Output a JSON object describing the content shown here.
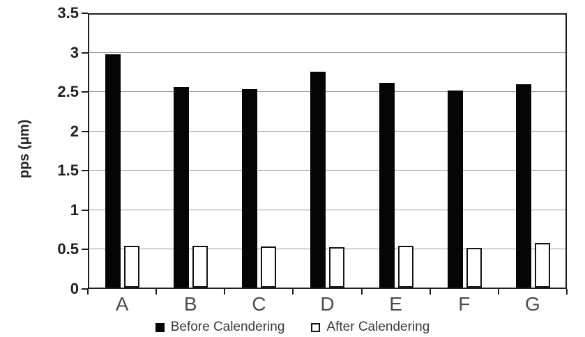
{
  "chart_data": {
    "type": "bar",
    "title": "",
    "categories": [
      "A",
      "B",
      "C",
      "D",
      "E",
      "F",
      "G"
    ],
    "series": [
      {
        "name": "Before Calendering",
        "values": [
          2.96,
          2.55,
          2.52,
          2.74,
          2.6,
          2.5,
          2.58
        ],
        "fill": "#050505",
        "outline": "#050505",
        "swatch": "filled"
      },
      {
        "name": "After Calendering",
        "values": [
          0.53,
          0.53,
          0.52,
          0.51,
          0.53,
          0.5,
          0.57
        ],
        "fill": "#ffffff",
        "outline": "#141414",
        "swatch": "outlined"
      }
    ],
    "xlabel": "",
    "ylabel": "pps (μm)",
    "ylim": [
      0,
      3.5
    ],
    "ytick_step": 0.5,
    "ytick_labels": [
      "0",
      "0.5",
      "1",
      "1.5",
      "2",
      "2.5",
      "3",
      "3.5"
    ],
    "grid": true,
    "legend_position": "bottom-center",
    "colors": {
      "plot_border": "#1f1f1f",
      "gridline": "#999999",
      "y_tick_text": "#1f1f1f",
      "x_tick_text": "#4d4d4d",
      "legend_text": "#3a3a3a",
      "background": "#ffffff"
    }
  }
}
